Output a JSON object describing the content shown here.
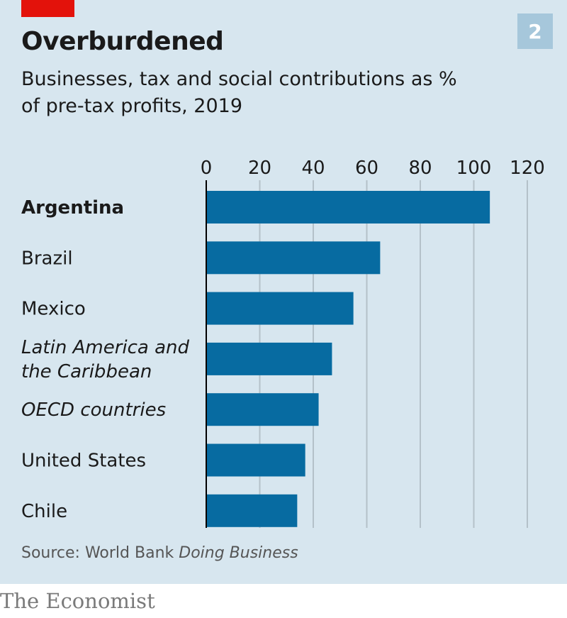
{
  "header": {
    "title": "Overburdened",
    "subtitle": "Businesses, tax and social contributions as % of pre-tax profits, 2019",
    "badge": "2"
  },
  "footer": {
    "source_prefix": "Source: World Bank ",
    "source_italic": "Doing Business",
    "brand": "The Economist"
  },
  "colors": {
    "accent_red": "#e3120b",
    "bar": "#076ba1",
    "background": "#d7e6ef",
    "badge": "#a6c7db",
    "gridline": "#b4c1c9"
  },
  "chart_data": {
    "type": "bar",
    "orientation": "horizontal",
    "title": "Overburdened",
    "subtitle": "Businesses, tax and social contributions as % of pre-tax profits, 2019",
    "xlabel": "",
    "ylabel": "",
    "xlim": [
      0,
      120
    ],
    "xticks": [
      0,
      20,
      40,
      60,
      80,
      100,
      120
    ],
    "tick_position": "top",
    "grid": true,
    "categories": [
      {
        "label": "Argentina",
        "style": "bold"
      },
      {
        "label": "Brazil",
        "style": "normal"
      },
      {
        "label": "Mexico",
        "style": "normal"
      },
      {
        "label": "Latin America and the Caribbean",
        "lines": [
          "Latin America and",
          "the Caribbean"
        ],
        "style": "italic"
      },
      {
        "label": "OECD countries",
        "style": "italic"
      },
      {
        "label": "United States",
        "style": "normal"
      },
      {
        "label": "Chile",
        "style": "normal"
      }
    ],
    "values": [
      106,
      65,
      55,
      47,
      42,
      37,
      34
    ],
    "source": "World Bank Doing Business"
  }
}
